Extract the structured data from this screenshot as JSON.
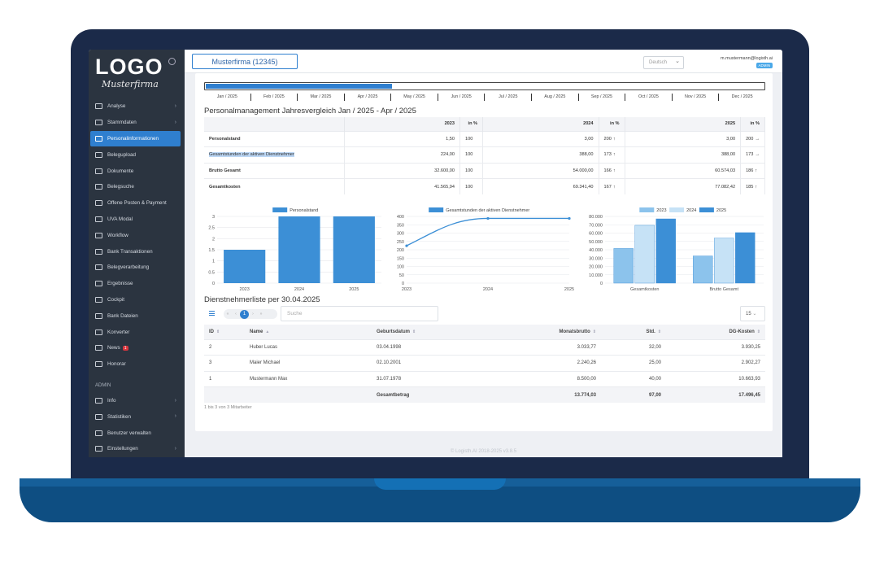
{
  "sidebar": {
    "logo": "LOGO",
    "logo_sub": "Musterfirma",
    "items": [
      {
        "label": "Analyse",
        "chevron": true
      },
      {
        "label": "Stammdaten",
        "chevron": true
      },
      {
        "label": "Personalinformationen",
        "active": true
      },
      {
        "label": "Belegupload"
      },
      {
        "label": "Dokumente"
      },
      {
        "label": "Belegsuche"
      },
      {
        "label": "Offene Posten & Payment"
      },
      {
        "label": "UVA Modal"
      },
      {
        "label": "Workflow"
      },
      {
        "label": "Bank Transaktionen"
      },
      {
        "label": "Belegverarbeitung"
      },
      {
        "label": "Ergebnisse"
      },
      {
        "label": "Cockpit"
      },
      {
        "label": "Bank Dateien"
      },
      {
        "label": "Konverter"
      },
      {
        "label": "News",
        "badge": "1"
      },
      {
        "label": "Honorar"
      }
    ],
    "admin_section": "ADMIN",
    "admin_items": [
      {
        "label": "Info",
        "chevron": true
      },
      {
        "label": "Statistiken",
        "chevron": true
      },
      {
        "label": "Benutzer verwalten"
      },
      {
        "label": "Einstellungen",
        "chevron": true
      }
    ]
  },
  "topbar": {
    "company": "Musterfirma  (12345)",
    "language": "Deutsch",
    "user_email": "m.mustermann@logisth.ai",
    "role": "ADMIN"
  },
  "timeline": {
    "months": [
      "Jan / 2025",
      "Feb / 2025",
      "Mar / 2025",
      "Apr / 2025",
      "May / 2025",
      "Jun / 2025",
      "Jul / 2025",
      "Aug / 2025",
      "Sep / 2025",
      "Oct / 2025",
      "Nov / 2025",
      "Dec / 2025"
    ],
    "selected_fraction": 0.333
  },
  "comparison": {
    "title": "Personalmanagement Jahresvergleich Jan / 2025 - Apr / 2025",
    "headers": [
      "",
      "2023",
      "in %",
      "2024",
      "in %",
      "2025",
      "in %"
    ],
    "rows": [
      {
        "label": "Personalstand",
        "v2023": "1,50",
        "p2023": "100",
        "v2024": "3,00",
        "p2024": "200",
        "a2024": "↑",
        "v2025": "3,00",
        "p2025": "200",
        "a2025": "→"
      },
      {
        "label": "Gesamtstunden der aktiven Dienstnehmer",
        "v2023": "224,00",
        "p2023": "100",
        "v2024": "388,00",
        "p2024": "173",
        "a2024": "↑",
        "v2025": "388,00",
        "p2025": "173",
        "a2025": "→"
      },
      {
        "label": "Brutto Gesamt",
        "v2023": "32.600,00",
        "p2023": "100",
        "v2024": "54.000,00",
        "p2024": "166",
        "a2024": "↑",
        "v2025": "60.574,03",
        "p2025": "186",
        "a2025": "↑"
      },
      {
        "label": "Gesamtkosten",
        "v2023": "41.565,94",
        "p2023": "100",
        "v2024": "69.341,40",
        "p2024": "167",
        "a2024": "↑",
        "v2025": "77.082,42",
        "p2025": "185",
        "a2025": "↑"
      }
    ]
  },
  "chart_data": [
    {
      "type": "bar",
      "categories": [
        "2023",
        "2024",
        "2025"
      ],
      "series": [
        {
          "name": "Personalstand",
          "values": [
            1.5,
            3,
            3
          ]
        }
      ],
      "ylim": [
        0,
        3
      ],
      "yticks": [
        "0",
        "0.5",
        "1",
        "1.5",
        "2",
        "2.5",
        "3"
      ],
      "color": "#3c8fd6"
    },
    {
      "type": "line",
      "categories": [
        "2023",
        "2024",
        "2025"
      ],
      "series": [
        {
          "name": "Gesamtstunden der aktiven Dienstnehmer",
          "values": [
            224,
            388,
            388
          ]
        }
      ],
      "ylim": [
        0,
        400
      ],
      "yticks": [
        "0",
        "50",
        "100",
        "150",
        "200",
        "250",
        "300",
        "350",
        "400"
      ],
      "color": "#3c8fd6"
    },
    {
      "type": "bar",
      "categories": [
        "Gesamtkosten",
        "Brutto Gesamt"
      ],
      "series": [
        {
          "name": "2023",
          "values": [
            41565.94,
            32600
          ],
          "color": "#8cc3ec"
        },
        {
          "name": "2024",
          "values": [
            69341.4,
            54000
          ],
          "color": "#c6e2f6"
        },
        {
          "name": "2025",
          "values": [
            77082.42,
            60574.03
          ],
          "color": "#3c8fd6"
        }
      ],
      "ylim": [
        0,
        80000
      ],
      "yticks": [
        "0",
        "10.000",
        "20.000",
        "30.000",
        "40.000",
        "50.000",
        "60.000",
        "70.000",
        "80.000"
      ]
    }
  ],
  "employees": {
    "title": "Dienstnehmerliste per 30.04.2025",
    "search_placeholder": "Suche",
    "page": "1",
    "page_size": "15",
    "headers": [
      "ID",
      "Name",
      "Geburtsdatum",
      "Monatsbrutto",
      "Std.",
      "DG-Kosten"
    ],
    "rows": [
      {
        "id": "2",
        "name": "Huber Lucas",
        "dob": "03.04.1998",
        "brutto": "3.033,77",
        "std": "32,00",
        "kosten": "3.930,25"
      },
      {
        "id": "3",
        "name": "Maier Michael",
        "dob": "02.10.2001",
        "brutto": "2.240,26",
        "std": "25,00",
        "kosten": "2.902,27"
      },
      {
        "id": "1",
        "name": "Mustermann Max",
        "dob": "31.07.1978",
        "brutto": "8.500,00",
        "std": "40,00",
        "kosten": "10.663,93"
      }
    ],
    "total": {
      "label": "Gesamtbetrag",
      "brutto": "13.774,03",
      "std": "97,00",
      "kosten": "17.496,45"
    },
    "count_text": "1 bis 3 von 3 Mitarbeiter"
  },
  "footer": "© Logisth.AI 2018-2025 v3.8.5"
}
